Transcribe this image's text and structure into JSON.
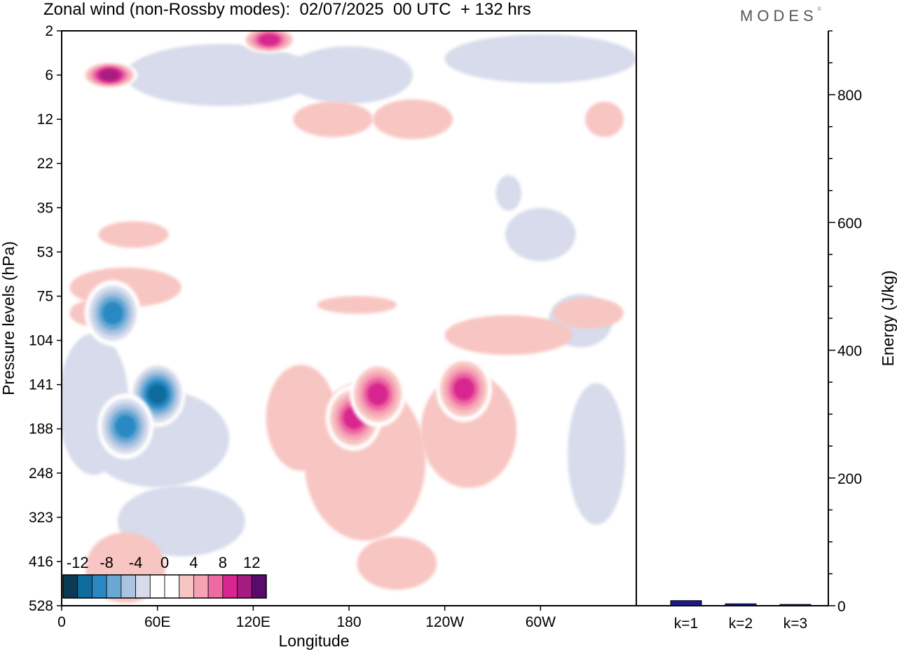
{
  "title": "Zonal wind (non-Rossby modes):  02/07/2025  00 UTC  + 132 hrs",
  "brand": "MODES",
  "brand_mark": "©",
  "chart_data": [
    {
      "type": "heatmap",
      "title": "Zonal wind (non-Rossby modes):  02/07/2025  00 UTC  + 132 hrs",
      "xlabel": "Longitude",
      "ylabel": "Pressure levels (hPa)",
      "x_ticks": [
        "0",
        "60E",
        "120E",
        "180",
        "120W",
        "60W"
      ],
      "y_ticks": [
        "2",
        "6",
        "12",
        "22",
        "35",
        "53",
        "75",
        "104",
        "141",
        "188",
        "248",
        "323",
        "416",
        "528"
      ],
      "colorbar": {
        "labels": [
          "-12",
          "-8",
          "-4",
          "0",
          "4",
          "8",
          "12"
        ],
        "colors": [
          "#0b3a55",
          "#106c9c",
          "#2a89c3",
          "#6aa8d4",
          "#a9c3e1",
          "#d7dbeb",
          "#ffffff",
          "#ffffff",
          "#f8c6c2",
          "#f5a3b5",
          "#ee6aa3",
          "#d8268f",
          "#a61b7f",
          "#5a0a6d"
        ]
      },
      "features": [
        {
          "sign": "positive",
          "label": "jet maximum near 180",
          "peak": 10,
          "lon": 183,
          "p": 175
        },
        {
          "sign": "positive",
          "label": "jet maximum near 160W",
          "peak": 10,
          "lon": 198,
          "p": 150
        },
        {
          "sign": "positive",
          "label": "maximum near 110W",
          "peak": 10,
          "lon": 252,
          "p": 145
        },
        {
          "sign": "negative",
          "label": "minimum near 60E",
          "peak": -12,
          "lon": 60,
          "p": 150
        },
        {
          "sign": "negative",
          "label": "minimum near 40E",
          "peak": -10,
          "lon": 40,
          "p": 185
        },
        {
          "sign": "negative",
          "label": "minimum near 30E 75hPa",
          "peak": -10,
          "lon": 32,
          "p": 85
        },
        {
          "sign": "positive",
          "label": "stratospheric maximum near 30E",
          "peak": 12,
          "lon": 30,
          "p": 6
        },
        {
          "sign": "positive",
          "label": "stratospheric maximum near 130E",
          "peak": 10,
          "lon": 130,
          "p": 2.5
        }
      ]
    },
    {
      "type": "bar",
      "ylabel": "Energy (J/kg)",
      "categories": [
        "k=1",
        "k=2",
        "k=3"
      ],
      "values": [
        8,
        3,
        2
      ],
      "ylim": [
        0,
        900
      ],
      "y_ticks": [
        0,
        200,
        400,
        600,
        800
      ],
      "bar_color": "#1a1a8c"
    }
  ]
}
